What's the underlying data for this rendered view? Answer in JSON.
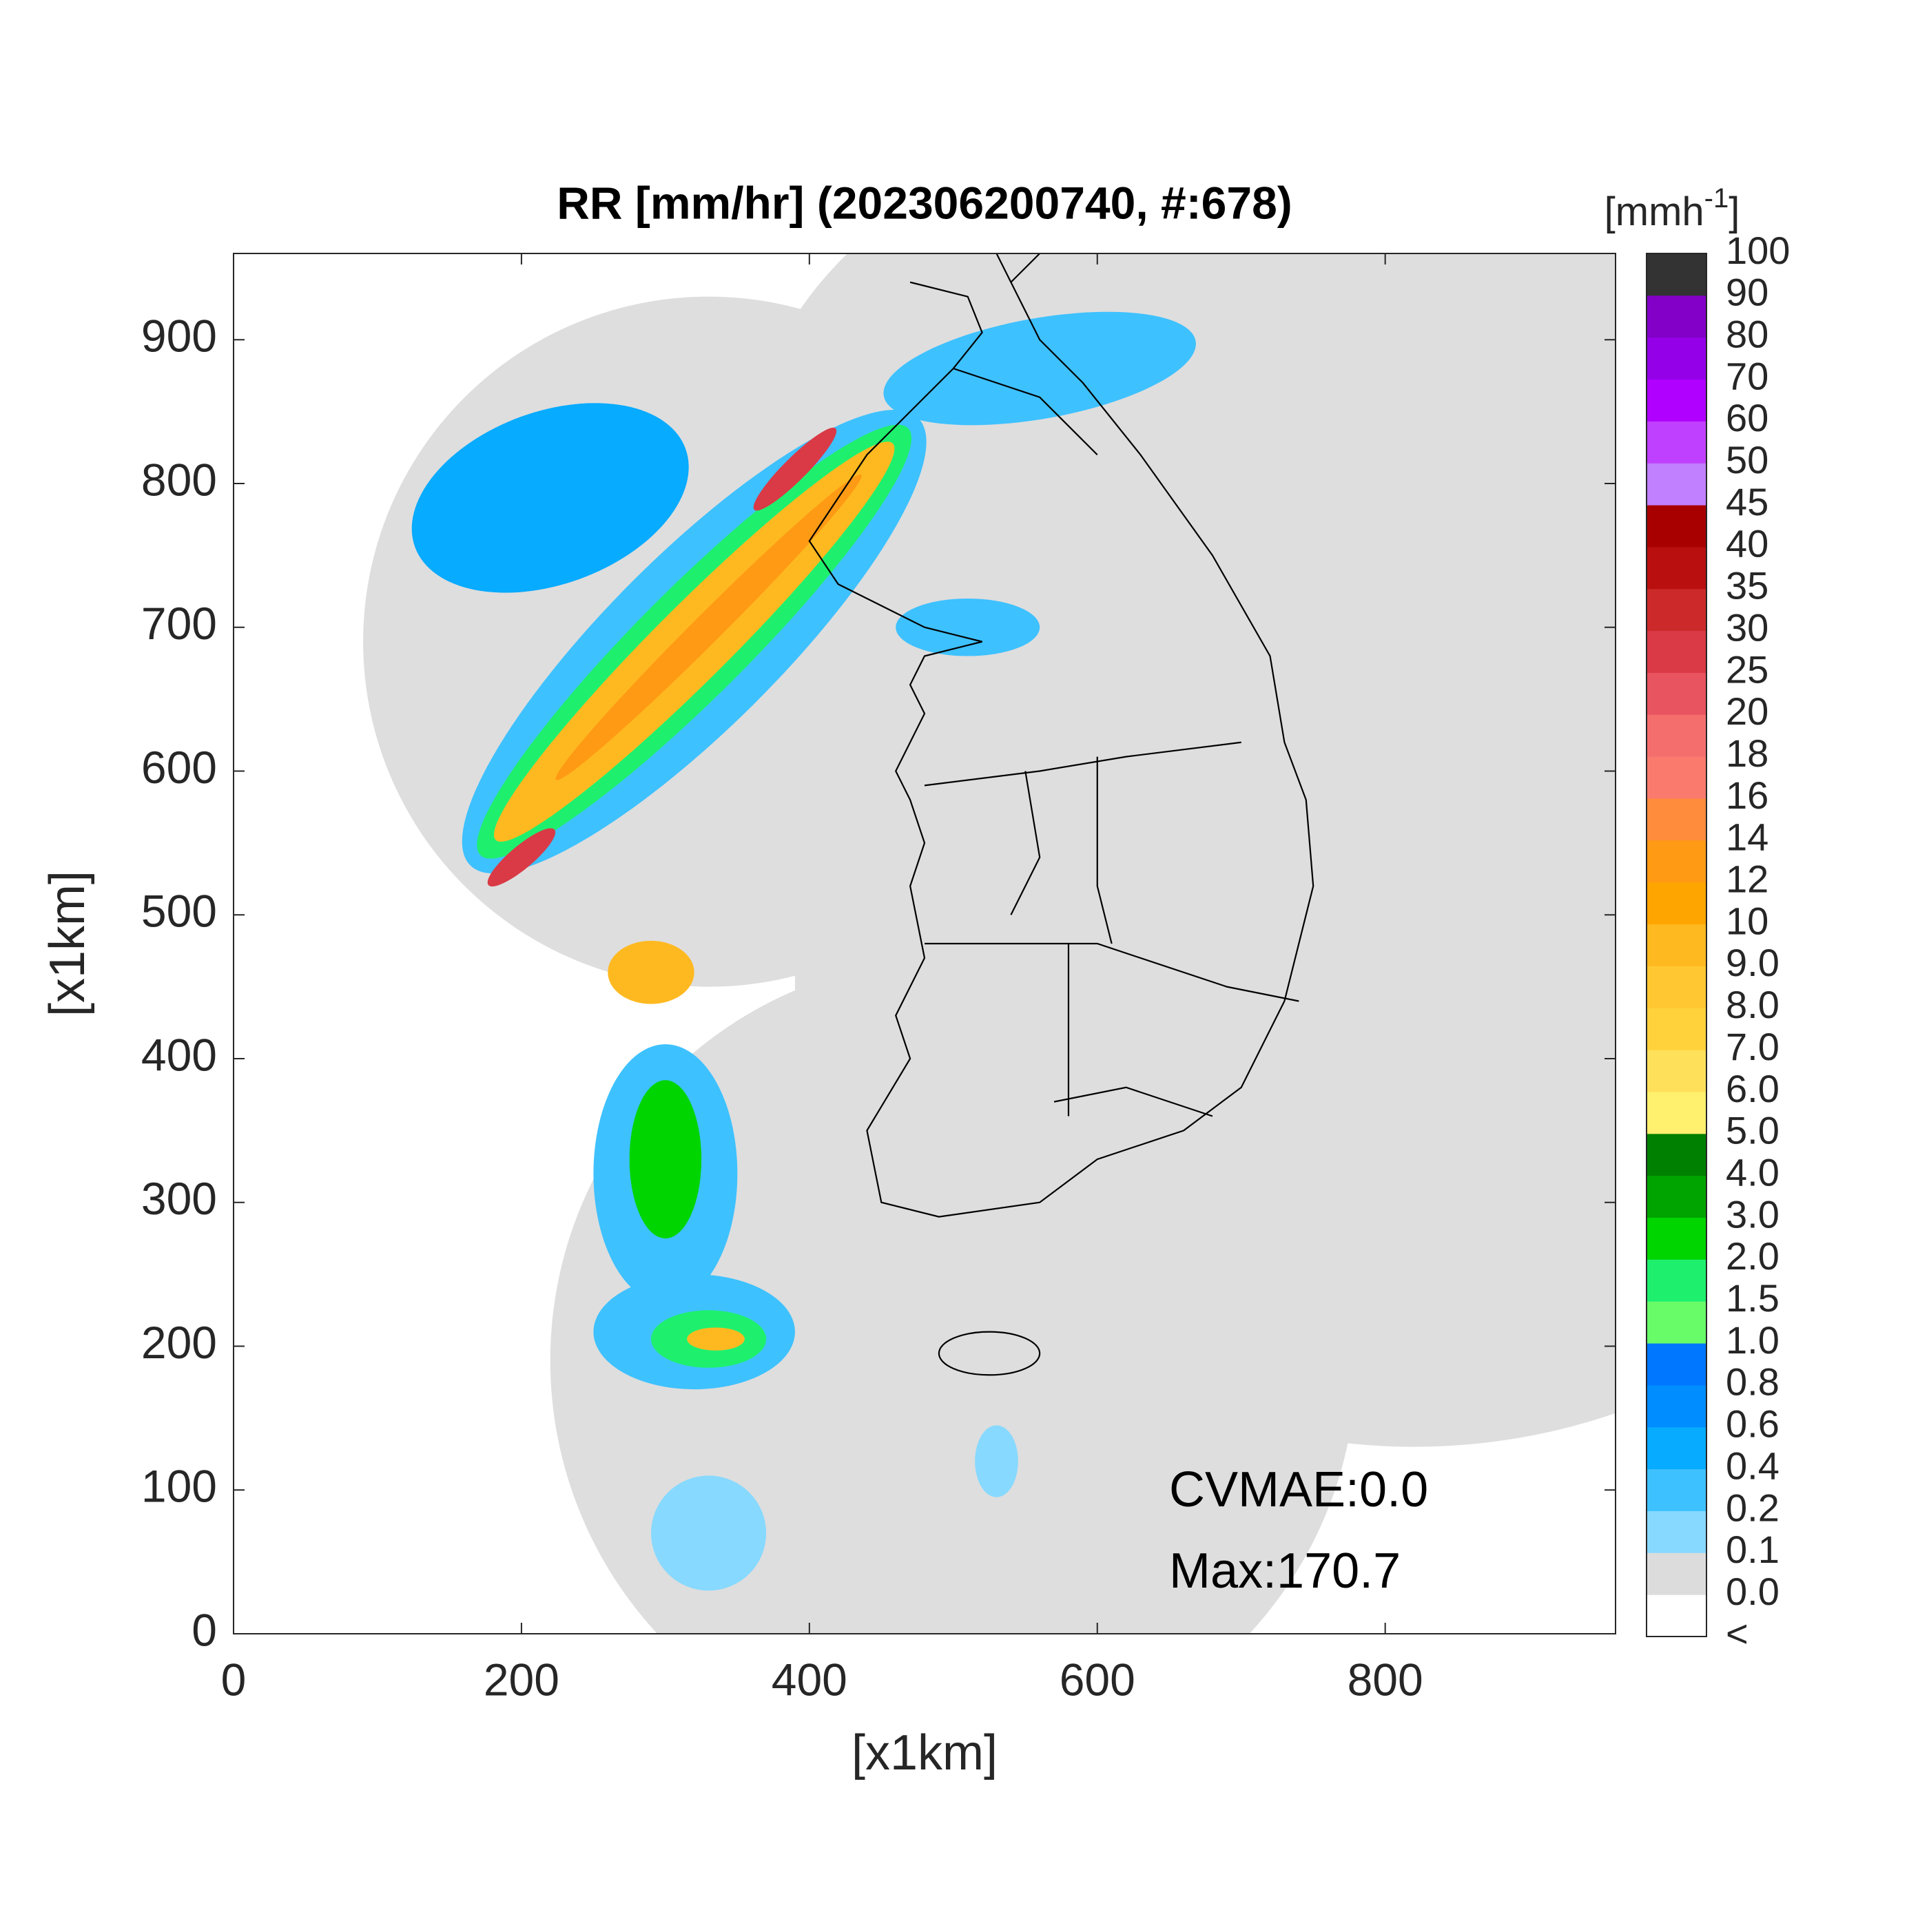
{
  "chart_data": {
    "type": "radar-map",
    "title": "RR [mm/hr] (202306200740, #:678)",
    "x_label": "[x1km]",
    "y_label": "[x1km]",
    "xlim": [
      0,
      960
    ],
    "ylim": [
      0,
      960
    ],
    "xticks": [
      0,
      200,
      400,
      600,
      800
    ],
    "yticks": [
      0,
      100,
      200,
      300,
      400,
      500,
      600,
      700,
      800,
      900
    ],
    "annotations": [
      "CVMAE:0.0",
      "Max:170.7"
    ],
    "colorbar_unit": {
      "base": "[mmh",
      "exponent": "-1",
      "close": "]"
    },
    "colorbar_labels": [
      "<",
      "0.0",
      "0.1",
      "0.2",
      "0.4",
      "0.6",
      "0.8",
      "1.0",
      "1.5",
      "2.0",
      "3.0",
      "4.0",
      "5.0",
      "6.0",
      "7.0",
      "8.0",
      "9.0",
      "10",
      "12",
      "14",
      "16",
      "18",
      "20",
      "25",
      "30",
      "35",
      "40",
      "45",
      "50",
      "60",
      "70",
      "80",
      "90",
      "100"
    ],
    "colorbar_colors": [
      "#ffffff",
      "#dcdcdc",
      "#87d9ff",
      "#3ec1ff",
      "#07abff",
      "#008dff",
      "#0077ff",
      "#69fc69",
      "#1ef06e",
      "#00d500",
      "#00a400",
      "#008000",
      "#fff06e",
      "#ffe05a",
      "#ffd23c",
      "#ffc832",
      "#ffb920",
      "#ffa500",
      "#ff9a14",
      "#ff8c3c",
      "#fa7a6e",
      "#f56e6e",
      "#e8545f",
      "#d93a46",
      "#cc2a2a",
      "#b90f0f",
      "#a80000",
      "#c080ff",
      "#c040ff",
      "#b000ff",
      "#9400e8",
      "#8200c8",
      "#333333"
    ]
  }
}
